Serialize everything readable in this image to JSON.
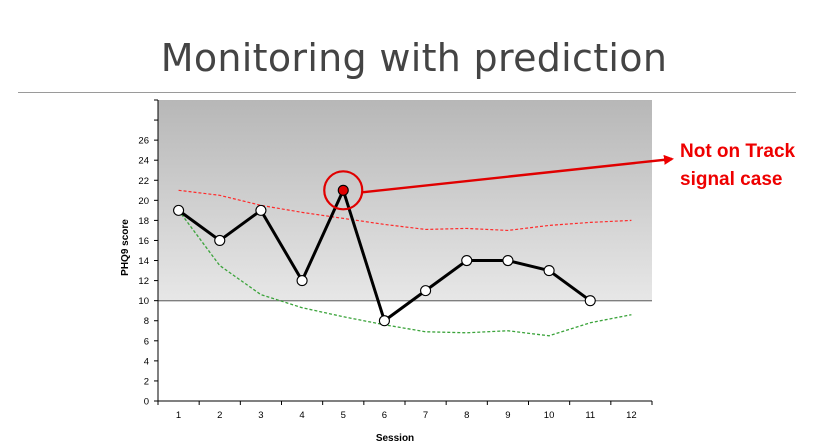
{
  "slide": {
    "title": "Monitoring with prediction"
  },
  "annotation": {
    "lines": [
      "Not on Track",
      "signal case"
    ],
    "target_session": 5
  },
  "colors": {
    "plot_top": "#b7b7b7",
    "plot_bottom": "#ffffff",
    "observed": "#000000",
    "upper_band": "#ff2a2a",
    "lower_band": "#3aa33a",
    "threshold": "#7f7f7f",
    "highlight": "#e00000"
  },
  "chart_data": {
    "type": "line",
    "title": "",
    "xlabel": "Session",
    "ylabel": "PHQ9 score",
    "x": [
      1,
      2,
      3,
      4,
      5,
      6,
      7,
      8,
      9,
      10,
      11,
      12
    ],
    "xlim": [
      0.5,
      12.5
    ],
    "ylim": [
      0,
      30
    ],
    "yticks": [
      0,
      2,
      4,
      6,
      8,
      10,
      12,
      14,
      16,
      18,
      20,
      22,
      24,
      26
    ],
    "threshold": 10,
    "grid": false,
    "series": [
      {
        "style": "solid-markers",
        "x": [
          1,
          2,
          3,
          4,
          5,
          6,
          7,
          8,
          9,
          10,
          11
        ],
        "values": [
          19,
          16,
          19,
          12,
          21,
          8,
          11,
          14,
          14,
          13,
          10
        ]
      },
      {
        "style": "dashed-red",
        "x": [
          1,
          2,
          3,
          4,
          5,
          6,
          7,
          8,
          9,
          10,
          11,
          12
        ],
        "values": [
          21,
          20.5,
          19.5,
          18.8,
          18.2,
          17.6,
          17.1,
          17.2,
          17.0,
          17.5,
          17.8,
          18.0
        ]
      },
      {
        "style": "dashed-green",
        "x": [
          1,
          2,
          3,
          4,
          5,
          6,
          7,
          8,
          9,
          10,
          11,
          12
        ],
        "values": [
          19,
          13.5,
          10.6,
          9.3,
          8.4,
          7.6,
          6.9,
          6.8,
          7.0,
          6.5,
          7.8,
          8.6
        ]
      }
    ]
  }
}
